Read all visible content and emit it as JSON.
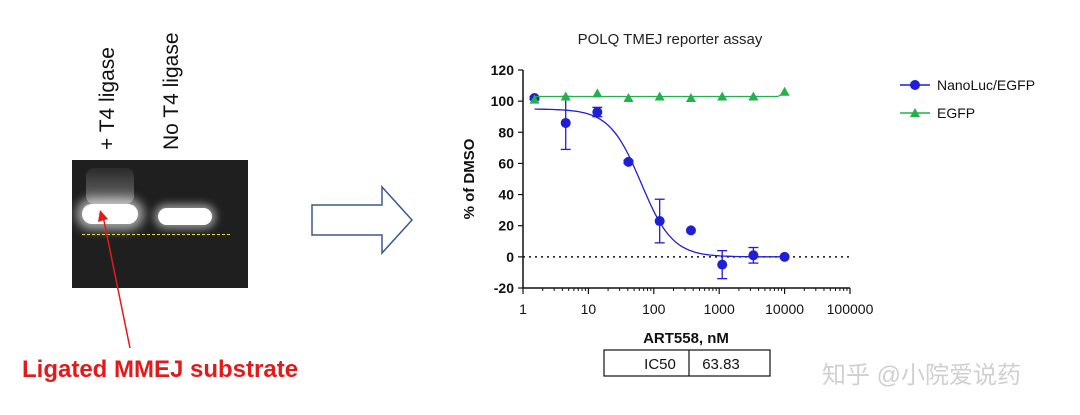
{
  "gel": {
    "lane_labels": [
      "+ T4 ligase",
      "No T4 ligase"
    ],
    "caption": "Ligated MMEJ substrate",
    "caption_color": "#e11b1b"
  },
  "watermark": "知乎 @小院爱说药",
  "chart_data": {
    "type": "scatter",
    "title": "POLQ TMEJ reporter assay",
    "xlabel": "ART558, nM",
    "ylabel": "% of DMSO",
    "xscale": "log",
    "xlim": [
      1,
      100000
    ],
    "ylim": [
      -20,
      120
    ],
    "xticks": [
      "1",
      "10",
      "100",
      "1000",
      "10000",
      "100000"
    ],
    "yticks": [
      "-20",
      "0",
      "20",
      "40",
      "60",
      "80",
      "100",
      "120"
    ],
    "grid": false,
    "legend_position": "top-right",
    "reference_line": {
      "y": 0,
      "style": "dotted"
    },
    "series": [
      {
        "name": "NanoLuc/EGFP",
        "color": "#1f1fd6",
        "marker": "circle",
        "x": [
          1.5,
          4.5,
          13.7,
          41,
          123,
          370,
          1111,
          3333,
          10000
        ],
        "y": [
          102,
          86,
          93,
          61,
          23,
          17,
          -5,
          1,
          0
        ],
        "error": [
          1,
          17,
          3,
          1,
          14,
          0,
          9,
          5,
          0
        ],
        "fit": {
          "top": 95,
          "bottom": 0,
          "ic50": 63.83,
          "hill": 1.8
        }
      },
      {
        "name": "EGFP",
        "color": "#22b14c",
        "marker": "triangle",
        "x": [
          1.5,
          4.5,
          13.7,
          41,
          123,
          370,
          1111,
          3333,
          10000
        ],
        "y": [
          101,
          103,
          105,
          102,
          103,
          102,
          103,
          103,
          106
        ],
        "fit": {
          "type": "flat",
          "value": 103
        }
      }
    ],
    "table": {
      "label": "IC50",
      "value": "63.83"
    }
  }
}
